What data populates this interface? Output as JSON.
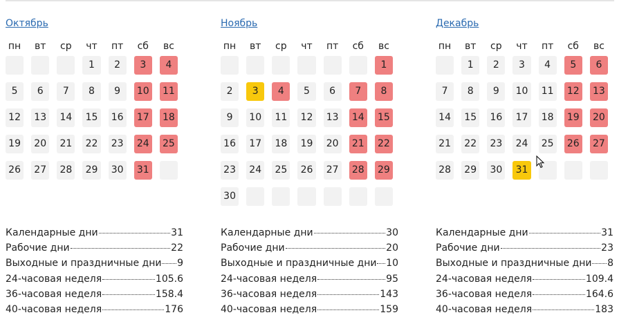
{
  "weekdays": [
    "пн",
    "вт",
    "ср",
    "чт",
    "пт",
    "сб",
    "вс"
  ],
  "colors": {
    "holiday": "#ef8080",
    "short_day": "#f8c80c",
    "workday": "#f2f2f2",
    "link": "#2a6ab0"
  },
  "months": [
    {
      "name": "Октябрь",
      "weeks": [
        [
          "",
          "",
          "",
          "1",
          "2",
          "3h",
          "4h"
        ],
        [
          "5",
          "6",
          "7",
          "8",
          "9",
          "10h",
          "11h"
        ],
        [
          "12",
          "13",
          "14",
          "15",
          "16",
          "17h",
          "18h"
        ],
        [
          "19",
          "20",
          "21",
          "22",
          "23",
          "24h",
          "25h"
        ],
        [
          "26",
          "27",
          "28",
          "29",
          "30",
          "31h",
          ""
        ]
      ],
      "stats": [
        {
          "label": "Календарные дни",
          "value": "31"
        },
        {
          "label": "Рабочие дни",
          "value": "22"
        },
        {
          "label": "Выходные и праздничные дни",
          "value": "9"
        },
        {
          "label": "24-часовая неделя",
          "value": "105.6"
        },
        {
          "label": "36-часовая неделя",
          "value": "158.4"
        },
        {
          "label": "40-часовая неделя",
          "value": "176"
        }
      ]
    },
    {
      "name": "Ноябрь",
      "weeks": [
        [
          "",
          "",
          "",
          "",
          "",
          "",
          "1h"
        ],
        [
          "2",
          "3y",
          "4h",
          "5",
          "6",
          "7h",
          "8h"
        ],
        [
          "9",
          "10",
          "11",
          "12",
          "13",
          "14h",
          "15h"
        ],
        [
          "16",
          "17",
          "18",
          "19",
          "20",
          "21h",
          "22h"
        ],
        [
          "23",
          "24",
          "25",
          "26",
          "27",
          "28h",
          "29h"
        ],
        [
          "30",
          "",
          "",
          "",
          "",
          "",
          ""
        ]
      ],
      "stats": [
        {
          "label": "Календарные дни",
          "value": "30"
        },
        {
          "label": "Рабочие дни",
          "value": "20"
        },
        {
          "label": "Выходные и праздничные дни",
          "value": "10"
        },
        {
          "label": "24-часовая неделя",
          "value": "95"
        },
        {
          "label": "36-часовая неделя",
          "value": "143"
        },
        {
          "label": "40-часовая неделя",
          "value": "159"
        }
      ]
    },
    {
      "name": "Декабрь",
      "weeks": [
        [
          "",
          "1",
          "2",
          "3",
          "4",
          "5h",
          "6h"
        ],
        [
          "7",
          "8",
          "9",
          "10",
          "11",
          "12h",
          "13h"
        ],
        [
          "14",
          "15",
          "16",
          "17",
          "18",
          "19h",
          "20h"
        ],
        [
          "21",
          "22",
          "23",
          "24",
          "25",
          "26h",
          "27h"
        ],
        [
          "28",
          "29",
          "30",
          "31y",
          "",
          "",
          ""
        ]
      ],
      "stats": [
        {
          "label": "Календарные дни",
          "value": "31"
        },
        {
          "label": "Рабочие дни",
          "value": "23"
        },
        {
          "label": "Выходные и праздничные дни",
          "value": "8"
        },
        {
          "label": "24-часовая неделя",
          "value": "109.4"
        },
        {
          "label": "36-часовая неделя",
          "value": "164.6"
        },
        {
          "label": "40-часовая неделя",
          "value": "183"
        }
      ]
    }
  ]
}
